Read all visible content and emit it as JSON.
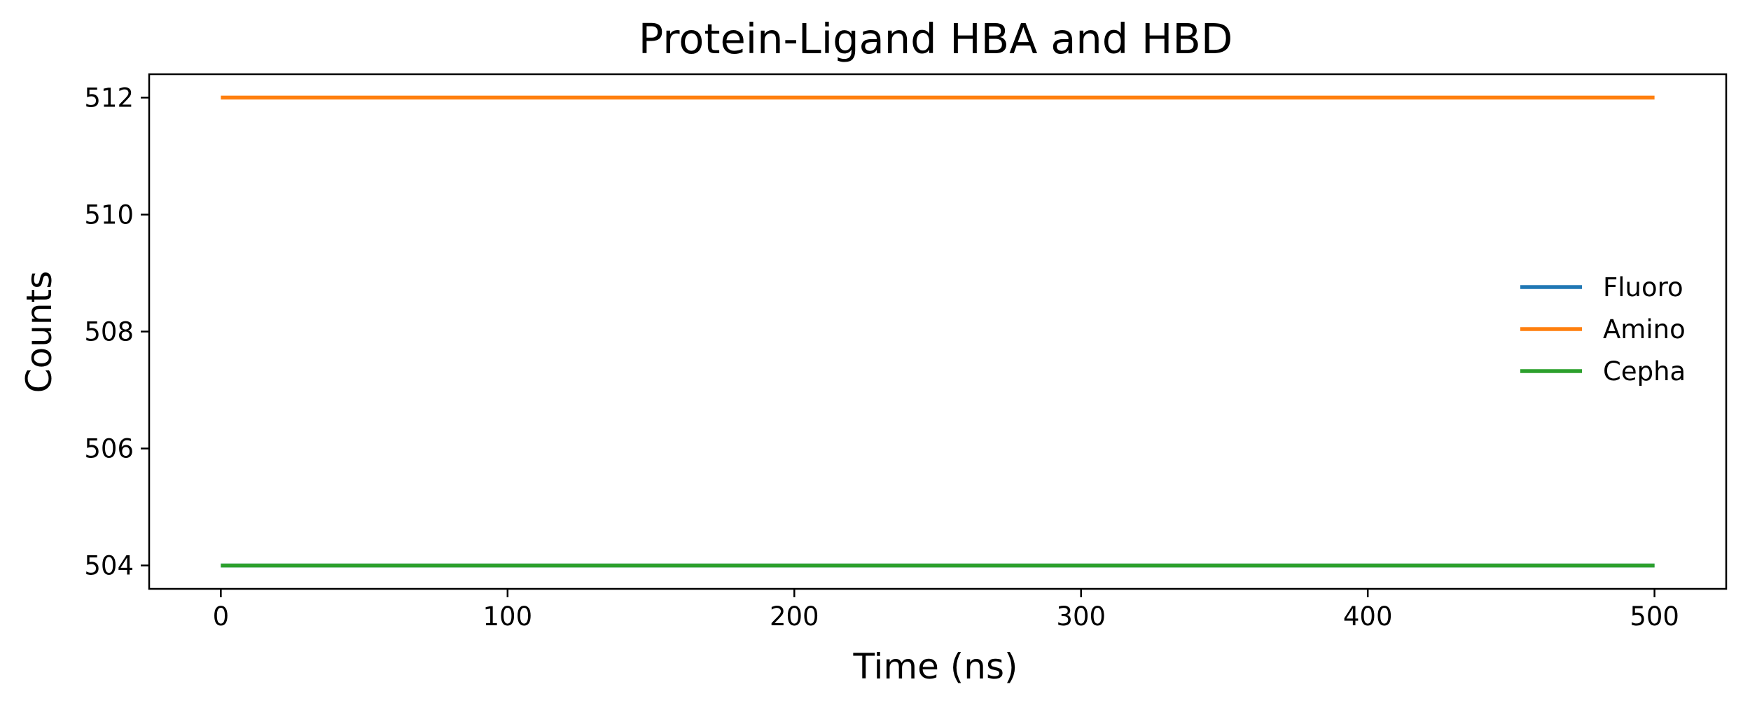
{
  "chart_data": {
    "type": "line",
    "title": "Protein-Ligand HBA and HBD",
    "xlabel": "Time (ns)",
    "ylabel": "Counts",
    "xlim": [
      -25,
      525
    ],
    "ylim": [
      503.6,
      512.4
    ],
    "xticks": [
      0,
      100,
      200,
      300,
      400,
      500
    ],
    "yticks": [
      504,
      506,
      508,
      510,
      512
    ],
    "grid": false,
    "legend_position": "center-right",
    "series": [
      {
        "name": "Fluoro",
        "color": "#1f77b4",
        "x": [
          0,
          500
        ],
        "y": [
          504,
          504
        ]
      },
      {
        "name": "Amino",
        "color": "#ff7f0e",
        "x": [
          0,
          500
        ],
        "y": [
          512,
          512
        ]
      },
      {
        "name": "Cepha",
        "color": "#2ca02c",
        "x": [
          0,
          500
        ],
        "y": [
          504,
          504
        ]
      }
    ]
  }
}
